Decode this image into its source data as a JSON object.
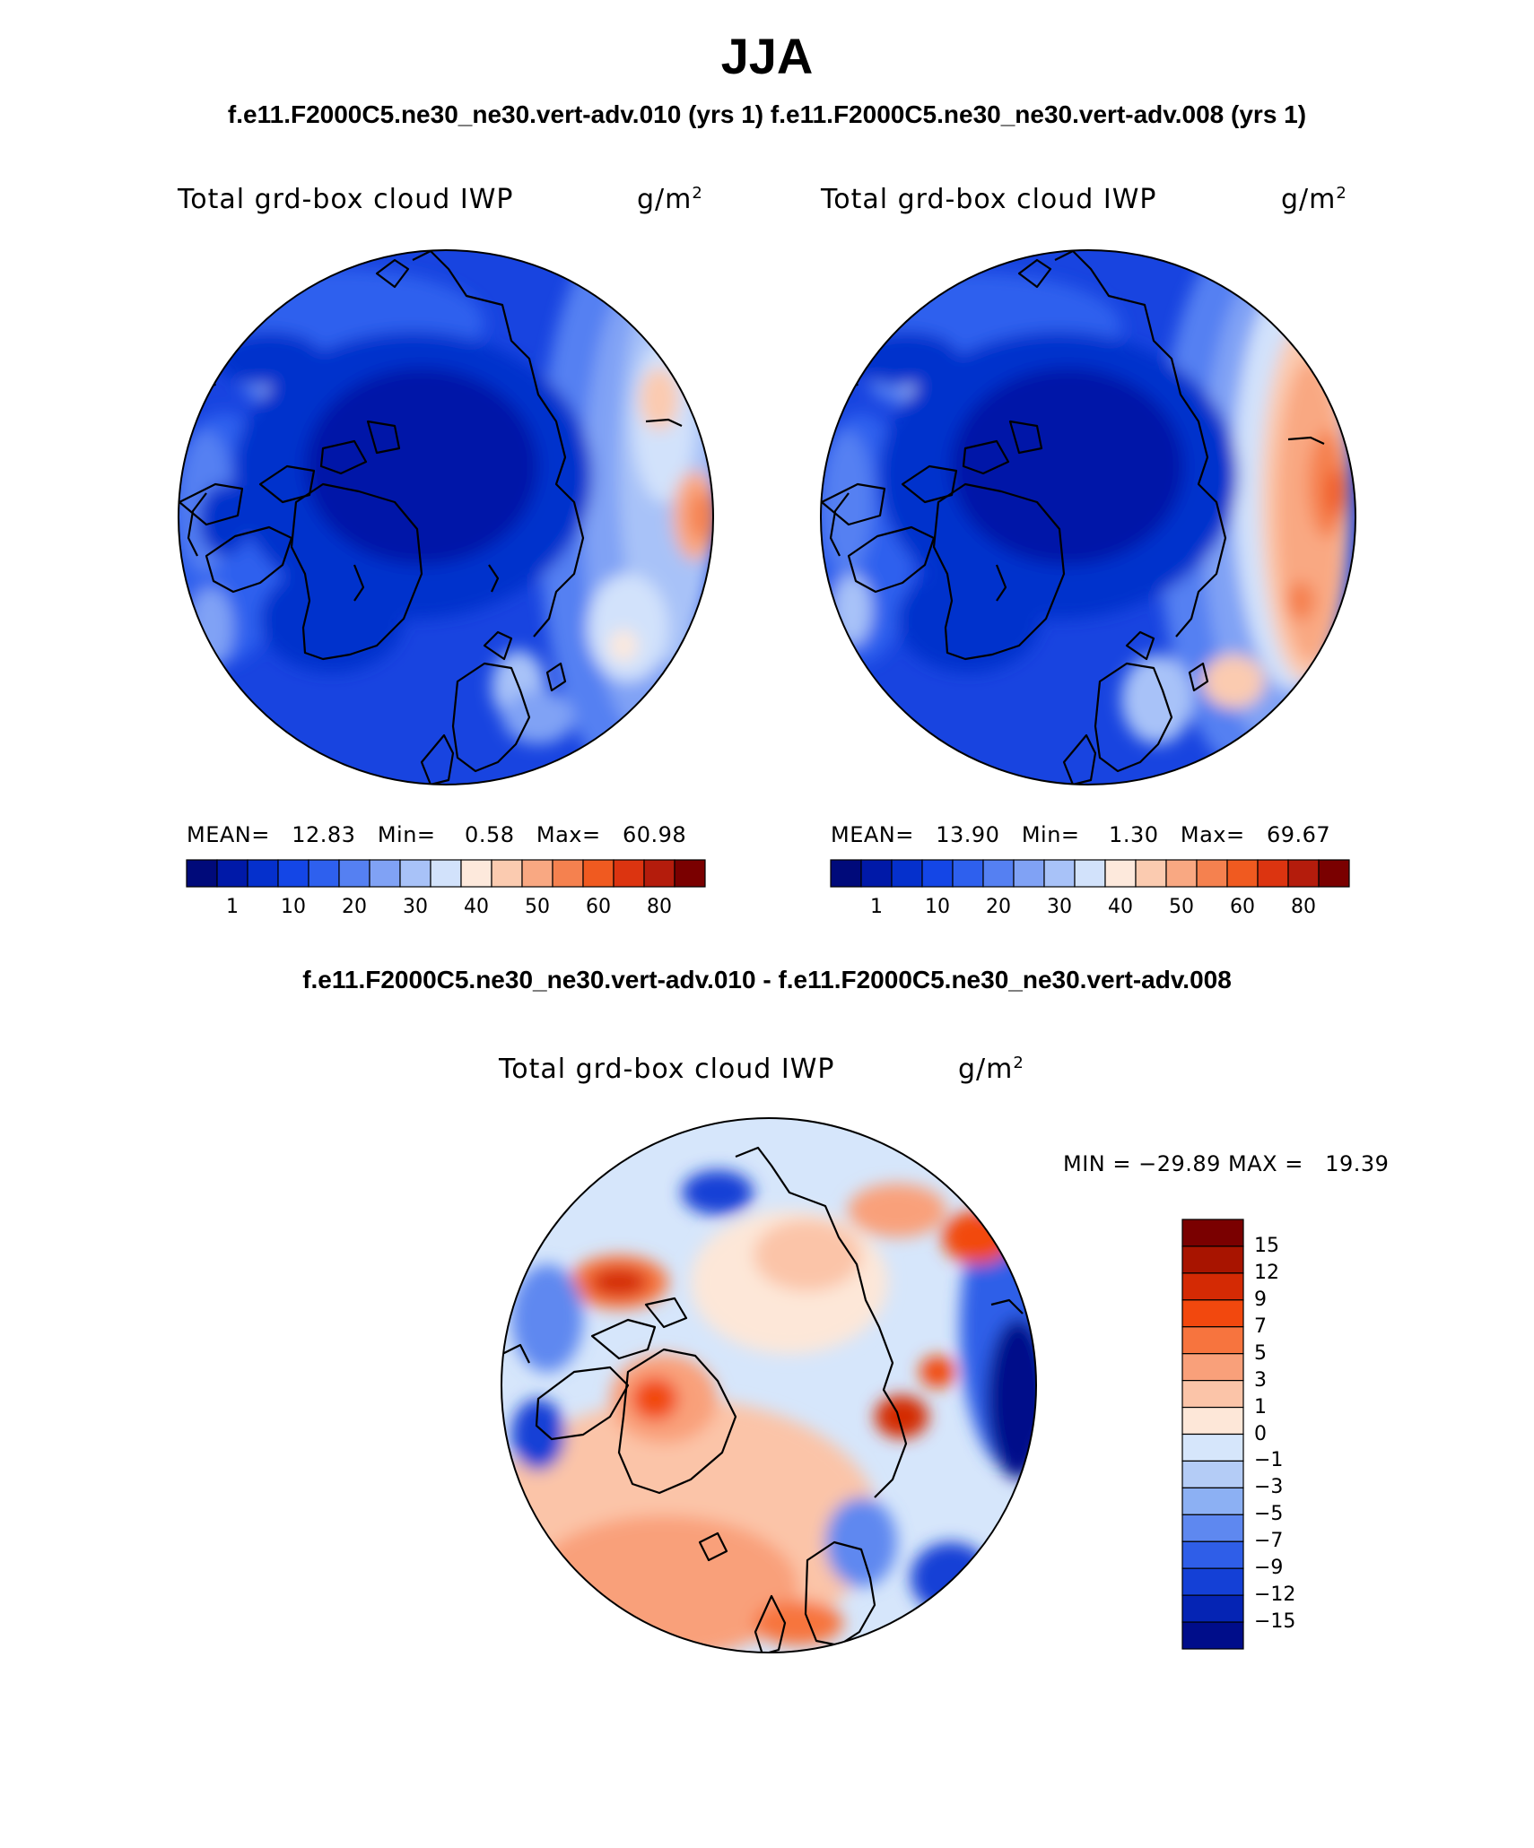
{
  "title": "JJA",
  "subtitle": "f.e11.F2000C5.ne30_ne30.vert-adv.010 (yrs 1) f.e11.F2000C5.ne30_ne30.vert-adv.008 (yrs 1)",
  "diff_title": "f.e11.F2000C5.ne30_ne30.vert-adv.010 - f.e11.F2000C5.ne30_ne30.vert-adv.008",
  "panels": [
    {
      "title": "Total grd-box cloud IWP",
      "units": "g/m",
      "units_exp": "2",
      "stats": "MEAN=   12.83   Min=    0.58   Max=   60.98"
    },
    {
      "title": "Total grd-box cloud IWP",
      "units": "g/m",
      "units_exp": "2",
      "stats": "MEAN=   13.90   Min=    1.30   Max=   69.67"
    }
  ],
  "diff_panel": {
    "title": "Total grd-box cloud IWP",
    "units": "g/m",
    "units_exp": "2",
    "stats": "MIN = −29.89 MAX =   19.39"
  },
  "abs_colorbar": {
    "colors": [
      "#000a7a",
      "#0019a8",
      "#0530cc",
      "#1446e6",
      "#2e60ee",
      "#5580f2",
      "#80a2f5",
      "#a8c2f8",
      "#d2e2fb",
      "#fde9dc",
      "#fbcbb0",
      "#f9a882",
      "#f5814f",
      "#f05a20",
      "#dc3410",
      "#b41c0c",
      "#7a0000"
    ],
    "labels": [
      "1",
      "10",
      "20",
      "30",
      "40",
      "50",
      "60",
      "80"
    ]
  },
  "diff_colorbar": {
    "colors": [
      "#7a0000",
      "#a81400",
      "#d42a04",
      "#f2480e",
      "#f7743e",
      "#f9a07a",
      "#fbc4a8",
      "#fde7d8",
      "#d6e6fb",
      "#b4ccf6",
      "#8cb0f3",
      "#5e88f0",
      "#2f5ee8",
      "#1440d6",
      "#0524b4",
      "#000d8a"
    ],
    "labels": [
      "15",
      "12",
      "9",
      "7",
      "5",
      "3",
      "1",
      "0",
      "−1",
      "−3",
      "−5",
      "−7",
      "−9",
      "−12",
      "−15"
    ]
  },
  "chart_data": [
    {
      "type": "contour-map",
      "projection": "north-polar-stereographic",
      "variable": "Total grd-box cloud IWP",
      "units": "g/m2",
      "case": "f.e11.F2000C5.ne30_ne30.vert-adv.010",
      "season": "JJA",
      "mean": 12.83,
      "min": 0.58,
      "max": 60.98,
      "contour_levels": [
        1,
        5,
        10,
        15,
        20,
        25,
        30,
        35,
        40,
        45,
        50,
        55,
        60,
        70,
        80,
        90
      ]
    },
    {
      "type": "contour-map",
      "projection": "north-polar-stereographic",
      "variable": "Total grd-box cloud IWP",
      "units": "g/m2",
      "case": "f.e11.F2000C5.ne30_ne30.vert-adv.008",
      "season": "JJA",
      "mean": 13.9,
      "min": 1.3,
      "max": 69.67,
      "contour_levels": [
        1,
        5,
        10,
        15,
        20,
        25,
        30,
        35,
        40,
        45,
        50,
        55,
        60,
        70,
        80,
        90
      ]
    },
    {
      "type": "contour-map",
      "projection": "north-polar-stereographic",
      "variable": "Total grd-box cloud IWP (difference)",
      "units": "g/m2",
      "min": -29.89,
      "max": 19.39,
      "contour_levels": [
        -15,
        -12,
        -9,
        -7,
        -5,
        -3,
        -1,
        0,
        1,
        3,
        5,
        7,
        9,
        12,
        15
      ]
    }
  ]
}
